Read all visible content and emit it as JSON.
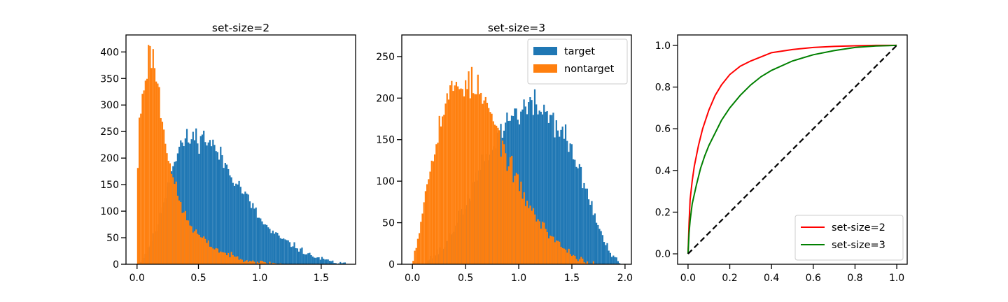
{
  "colors": {
    "target": "#1f77b4",
    "nontarget": "#ff7f0e",
    "roc_set2": "#ff0000",
    "roc_set3": "#008000",
    "chance": "#000000"
  },
  "chart_data": [
    {
      "type": "bar",
      "subtype": "histogram",
      "title": "set-size=2",
      "xlim": [
        -0.09,
        1.78
      ],
      "ylim": [
        0,
        432
      ],
      "xticks": [
        0.0,
        0.5,
        1.0,
        1.5
      ],
      "xtick_labels": [
        "0.0",
        "0.5",
        "1.0",
        "1.5"
      ],
      "yticks": [
        0,
        50,
        100,
        150,
        200,
        250,
        300,
        350,
        400
      ],
      "ytick_labels": [
        "0",
        "50",
        "100",
        "150",
        "200",
        "250",
        "300",
        "350",
        "400"
      ],
      "bin_width": 0.0125,
      "draw_order": [
        "target",
        "nontarget"
      ],
      "series": [
        {
          "key": "target",
          "control_x": [
            0.0,
            0.05,
            0.15,
            0.25,
            0.3,
            0.35,
            0.4,
            0.45,
            0.5,
            0.55,
            0.6,
            0.7,
            0.8,
            0.9,
            1.0,
            1.1,
            1.2,
            1.3,
            1.4,
            1.5,
            1.6,
            1.7
          ],
          "control_y": [
            0,
            10,
            60,
            150,
            195,
            225,
            232,
            238,
            240,
            238,
            230,
            195,
            160,
            125,
            85,
            60,
            45,
            32,
            18,
            10,
            4,
            0
          ],
          "start": 0.0,
          "end": 1.7,
          "seed": 11
        },
        {
          "key": "nontarget",
          "control_x": [
            0.0,
            0.02,
            0.05,
            0.08,
            0.1,
            0.12,
            0.15,
            0.18,
            0.2,
            0.25,
            0.3,
            0.35,
            0.4,
            0.45,
            0.5,
            0.6,
            0.7,
            0.8,
            0.9,
            1.0,
            1.1,
            1.2
          ],
          "control_y": [
            150,
            270,
            330,
            375,
            395,
            400,
            370,
            320,
            280,
            215,
            155,
            115,
            88,
            68,
            55,
            35,
            22,
            14,
            8,
            4,
            2,
            0
          ],
          "start": 0.0,
          "end": 1.2,
          "seed": 23
        }
      ]
    },
    {
      "type": "bar",
      "subtype": "histogram",
      "title": "set-size=3",
      "xlim": [
        -0.1,
        2.06
      ],
      "ylim": [
        0,
        276
      ],
      "xticks": [
        0.0,
        0.5,
        1.0,
        1.5,
        2.0
      ],
      "xtick_labels": [
        "0.0",
        "0.5",
        "1.0",
        "1.5",
        "2.0"
      ],
      "yticks": [
        0,
        50,
        100,
        150,
        200,
        250
      ],
      "ytick_labels": [
        "0",
        "50",
        "100",
        "150",
        "200",
        "250"
      ],
      "bin_width": 0.0145,
      "draw_order": [
        "target",
        "nontarget"
      ],
      "legend": {
        "position": "top-right",
        "entries": [
          {
            "key": "target",
            "label": "target"
          },
          {
            "key": "nontarget",
            "label": "nontarget"
          }
        ]
      },
      "series": [
        {
          "key": "target",
          "control_x": [
            0.1,
            0.3,
            0.5,
            0.7,
            0.85,
            0.95,
            1.05,
            1.15,
            1.25,
            1.35,
            1.45,
            1.55,
            1.65,
            1.75,
            1.85,
            1.95
          ],
          "control_y": [
            0,
            20,
            70,
            130,
            165,
            180,
            188,
            190,
            185,
            170,
            150,
            120,
            85,
            45,
            15,
            0
          ],
          "start": 0.1,
          "end": 1.95,
          "seed": 37
        },
        {
          "key": "nontarget",
          "control_x": [
            0.0,
            0.05,
            0.1,
            0.2,
            0.3,
            0.4,
            0.5,
            0.6,
            0.7,
            0.8,
            0.9,
            1.0,
            1.1,
            1.2,
            1.3,
            1.4,
            1.5,
            1.6,
            1.7
          ],
          "control_y": [
            5,
            30,
            70,
            140,
            190,
            215,
            220,
            212,
            190,
            160,
            125,
            95,
            70,
            50,
            35,
            22,
            12,
            5,
            0
          ],
          "start": 0.0,
          "end": 1.7,
          "seed": 53
        }
      ]
    },
    {
      "type": "line",
      "xlim": [
        -0.05,
        1.05
      ],
      "ylim": [
        -0.05,
        1.05
      ],
      "xticks": [
        0.0,
        0.2,
        0.4,
        0.6,
        0.8,
        1.0
      ],
      "xtick_labels": [
        "0.0",
        "0.2",
        "0.4",
        "0.6",
        "0.8",
        "1.0"
      ],
      "yticks": [
        0.0,
        0.2,
        0.4,
        0.6,
        0.8,
        1.0
      ],
      "ytick_labels": [
        "0.0",
        "0.2",
        "0.4",
        "0.6",
        "0.8",
        "1.0"
      ],
      "legend": {
        "position": "bottom-right",
        "entries": [
          {
            "key": "roc_set2",
            "label": "set-size=2"
          },
          {
            "key": "roc_set3",
            "label": "set-size=3"
          }
        ]
      },
      "series": [
        {
          "key": "roc_set2",
          "x": [
            0.0,
            0.005,
            0.01,
            0.02,
            0.03,
            0.05,
            0.07,
            0.1,
            0.13,
            0.16,
            0.2,
            0.25,
            0.3,
            0.35,
            0.4,
            0.5,
            0.6,
            0.7,
            0.8,
            0.9,
            1.0
          ],
          "y": [
            0.0,
            0.15,
            0.26,
            0.35,
            0.42,
            0.52,
            0.6,
            0.69,
            0.76,
            0.81,
            0.86,
            0.9,
            0.925,
            0.945,
            0.965,
            0.98,
            0.99,
            0.995,
            0.998,
            1.0,
            1.0
          ]
        },
        {
          "key": "roc_set3",
          "x": [
            0.0,
            0.005,
            0.01,
            0.02,
            0.04,
            0.06,
            0.08,
            0.1,
            0.13,
            0.16,
            0.2,
            0.25,
            0.3,
            0.35,
            0.4,
            0.5,
            0.6,
            0.7,
            0.8,
            0.9,
            1.0
          ],
          "y": [
            0.0,
            0.1,
            0.16,
            0.24,
            0.33,
            0.41,
            0.47,
            0.52,
            0.58,
            0.64,
            0.7,
            0.76,
            0.81,
            0.85,
            0.88,
            0.925,
            0.955,
            0.975,
            0.99,
            0.997,
            1.0
          ]
        },
        {
          "key": "chance",
          "dash": true,
          "x": [
            0.0,
            1.0
          ],
          "y": [
            0.0,
            1.0
          ]
        }
      ]
    }
  ]
}
